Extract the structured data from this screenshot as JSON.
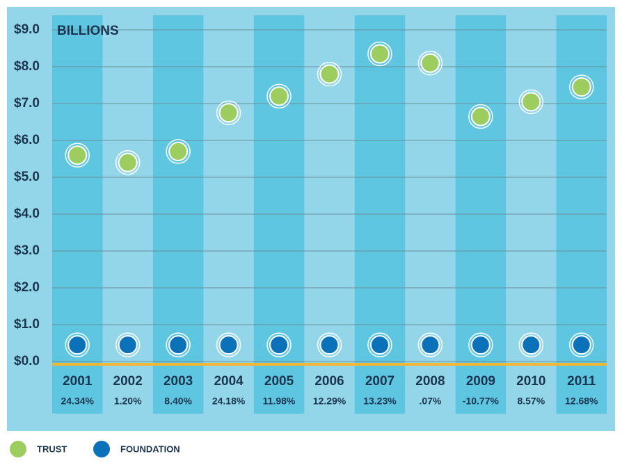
{
  "chart_data": {
    "type": "scatter",
    "y_axis_label": "BILLIONS",
    "categories": [
      "2001",
      "2002",
      "2003",
      "2004",
      "2005",
      "2006",
      "2007",
      "2008",
      "2009",
      "2010",
      "2011"
    ],
    "returns": [
      "24.34%",
      "1.20%",
      "8.40%",
      "24.18%",
      "11.98%",
      "12.29%",
      "13.23%",
      ".07%",
      "-10.77%",
      "8.57%",
      "12.68%"
    ],
    "series": [
      {
        "name": "TRUST",
        "color": "#9dcd5f",
        "values": [
          5.6,
          5.4,
          5.7,
          6.75,
          7.2,
          7.8,
          8.35,
          8.1,
          6.65,
          7.05,
          7.45
        ]
      },
      {
        "name": "FOUNDATION",
        "color": "#0b72b9",
        "values": [
          0.45,
          0.45,
          0.45,
          0.45,
          0.45,
          0.45,
          0.45,
          0.45,
          0.45,
          0.45,
          0.45
        ]
      }
    ],
    "ylim": [
      0,
      9
    ],
    "yticks": [
      {
        "value": 0,
        "label": "$0.0"
      },
      {
        "value": 1,
        "label": "$1.0"
      },
      {
        "value": 2,
        "label": "$2.0"
      },
      {
        "value": 3,
        "label": "$3.0"
      },
      {
        "value": 4,
        "label": "$4.0"
      },
      {
        "value": 5,
        "label": "$5.0"
      },
      {
        "value": 6,
        "label": "$6.0"
      },
      {
        "value": 7,
        "label": "$7.0"
      },
      {
        "value": 8,
        "label": "$8.0"
      },
      {
        "value": 9,
        "label": "$9.0"
      }
    ],
    "grid": true
  }
}
